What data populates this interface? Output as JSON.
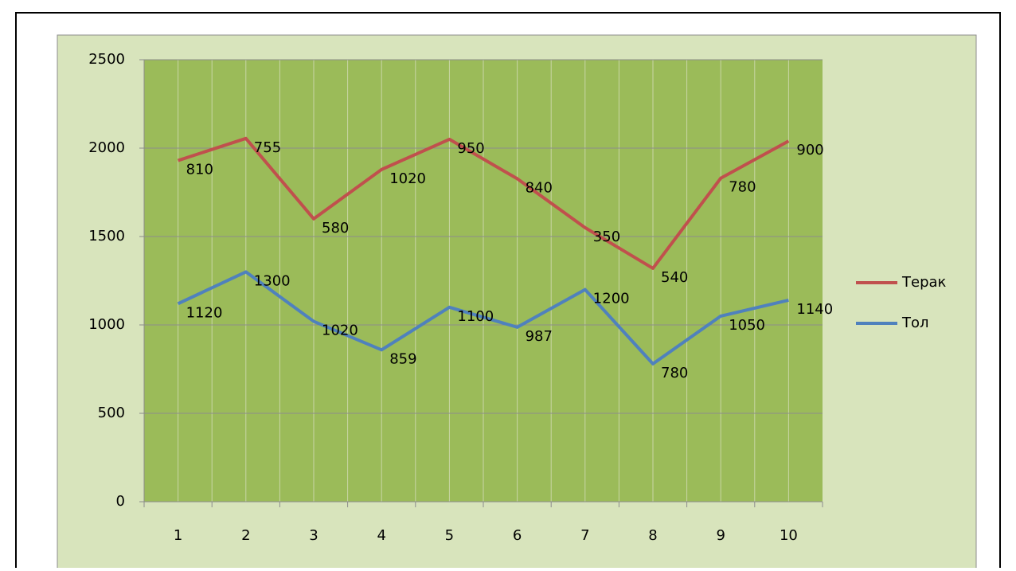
{
  "chart_data": {
    "type": "line",
    "stacked": true,
    "categories": [
      "1",
      "2",
      "3",
      "4",
      "5",
      "6",
      "7",
      "8",
      "9",
      "10"
    ],
    "series": [
      {
        "name": "Тол",
        "color": "#4f81bd",
        "values": [
          1120,
          1300,
          1020,
          859,
          1100,
          987,
          1200,
          780,
          1050,
          1140
        ]
      },
      {
        "name": "Терак",
        "color": "#c0504d",
        "values": [
          810,
          755,
          580,
          1020,
          950,
          840,
          350,
          540,
          780,
          900
        ]
      }
    ],
    "ylim": [
      0,
      2500
    ],
    "yticks": [
      0,
      500,
      1000,
      1500,
      2000,
      2500
    ],
    "grid": true,
    "legend": "right"
  }
}
